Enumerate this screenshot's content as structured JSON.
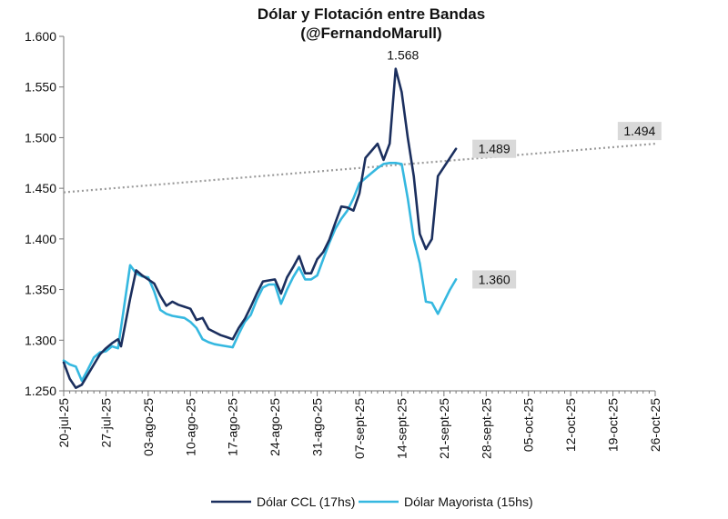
{
  "chart_data": {
    "type": "line",
    "title": "Dólar y Flotación entre Bandas",
    "subtitle": "(@FernandoMarull)",
    "xlabel": "",
    "ylabel": "",
    "ylim": [
      1250,
      1600
    ],
    "yticks": [
      "1.250",
      "1.300",
      "1.350",
      "1.400",
      "1.450",
      "1.500",
      "1.550",
      "1.600"
    ],
    "x_start": "20-jul-25",
    "x_end_day": 98,
    "xticks": [
      {
        "label": "20-jul-25",
        "day": 0
      },
      {
        "label": "27-jul-25",
        "day": 7
      },
      {
        "label": "03-ago-25",
        "day": 14
      },
      {
        "label": "10-ago-25",
        "day": 21
      },
      {
        "label": "17-ago-25",
        "day": 28
      },
      {
        "label": "24-ago-25",
        "day": 35
      },
      {
        "label": "31-ago-25",
        "day": 42
      },
      {
        "label": "07-sept-25",
        "day": 49
      },
      {
        "label": "14-sept-25",
        "day": 56
      },
      {
        "label": "21-sept-25",
        "day": 63
      },
      {
        "label": "28-sept-25",
        "day": 70
      },
      {
        "label": "05-oct-25",
        "day": 77
      },
      {
        "label": "12-oct-25",
        "day": 84
      },
      {
        "label": "19-oct-25",
        "day": 91
      },
      {
        "label": "26-oct-25",
        "day": 98
      }
    ],
    "series": [
      {
        "name": "Dólar CCL (17hs)",
        "color": "#1b2f5e",
        "points": [
          [
            0,
            1278
          ],
          [
            1,
            1262
          ],
          [
            2,
            1253
          ],
          [
            3,
            1256
          ],
          [
            4,
            1266
          ],
          [
            5,
            1276
          ],
          [
            6,
            1286
          ],
          [
            7,
            1292
          ],
          [
            8,
            1297
          ],
          [
            9,
            1301
          ],
          [
            9.5,
            1294
          ],
          [
            11,
            1341
          ],
          [
            12,
            1369
          ],
          [
            13,
            1364
          ],
          [
            14,
            1360
          ],
          [
            15,
            1356
          ],
          [
            16,
            1344
          ],
          [
            17,
            1334
          ],
          [
            18,
            1338
          ],
          [
            19,
            1335
          ],
          [
            20,
            1333
          ],
          [
            21,
            1331
          ],
          [
            22,
            1320
          ],
          [
            23,
            1322
          ],
          [
            24,
            1311
          ],
          [
            25,
            1308
          ],
          [
            26,
            1305
          ],
          [
            27,
            1303
          ],
          [
            28,
            1301
          ],
          [
            29,
            1312
          ],
          [
            30,
            1321
          ],
          [
            31,
            1333
          ],
          [
            32,
            1346
          ],
          [
            33,
            1358
          ],
          [
            34,
            1359
          ],
          [
            35,
            1360
          ],
          [
            36,
            1346
          ],
          [
            37,
            1362
          ],
          [
            38,
            1372
          ],
          [
            39,
            1383
          ],
          [
            40,
            1366
          ],
          [
            41,
            1366
          ],
          [
            42,
            1380
          ],
          [
            43,
            1387
          ],
          [
            44,
            1399
          ],
          [
            45,
            1416
          ],
          [
            46,
            1432
          ],
          [
            47,
            1431
          ],
          [
            48,
            1428
          ],
          [
            49,
            1445
          ],
          [
            50,
            1480
          ],
          [
            51,
            1487
          ],
          [
            52,
            1494
          ],
          [
            53,
            1478
          ],
          [
            54,
            1494
          ],
          [
            55,
            1568
          ],
          [
            56,
            1545
          ],
          [
            57,
            1500
          ],
          [
            58,
            1462
          ],
          [
            59,
            1405
          ],
          [
            60,
            1390
          ],
          [
            61,
            1400
          ],
          [
            62,
            1462
          ],
          [
            63,
            1471
          ],
          [
            64,
            1480
          ],
          [
            65,
            1489
          ]
        ],
        "end_label": "1.489"
      },
      {
        "name": "Dólar Mayorista (15hs)",
        "color": "#35b8e0",
        "points": [
          [
            0,
            1280
          ],
          [
            1,
            1276
          ],
          [
            2,
            1274
          ],
          [
            3,
            1260
          ],
          [
            4,
            1271
          ],
          [
            5,
            1283
          ],
          [
            6,
            1288
          ],
          [
            7,
            1289
          ],
          [
            8,
            1294
          ],
          [
            9,
            1292
          ],
          [
            11,
            1374
          ],
          [
            12,
            1366
          ],
          [
            13,
            1363
          ],
          [
            14,
            1362
          ],
          [
            15,
            1348
          ],
          [
            16,
            1330
          ],
          [
            17,
            1326
          ],
          [
            18,
            1324
          ],
          [
            19,
            1323
          ],
          [
            20,
            1322
          ],
          [
            21,
            1318
          ],
          [
            22,
            1312
          ],
          [
            23,
            1301
          ],
          [
            24,
            1298
          ],
          [
            25,
            1296
          ],
          [
            26,
            1295
          ],
          [
            27,
            1294
          ],
          [
            28,
            1293
          ],
          [
            29,
            1306
          ],
          [
            30,
            1318
          ],
          [
            31,
            1325
          ],
          [
            32,
            1340
          ],
          [
            33,
            1352
          ],
          [
            34,
            1355
          ],
          [
            35,
            1355
          ],
          [
            36,
            1336
          ],
          [
            37,
            1350
          ],
          [
            38,
            1362
          ],
          [
            39,
            1372
          ],
          [
            40,
            1360
          ],
          [
            41,
            1360
          ],
          [
            42,
            1364
          ],
          [
            43,
            1380
          ],
          [
            44,
            1396
          ],
          [
            45,
            1410
          ],
          [
            46,
            1420
          ],
          [
            47,
            1428
          ],
          [
            48,
            1440
          ],
          [
            49,
            1455
          ],
          [
            50,
            1460
          ],
          [
            51,
            1465
          ],
          [
            52,
            1470
          ],
          [
            53,
            1474
          ],
          [
            54,
            1475
          ],
          [
            55,
            1475
          ],
          [
            56,
            1474
          ],
          [
            57,
            1440
          ],
          [
            58,
            1400
          ],
          [
            59,
            1376
          ],
          [
            60,
            1338
          ],
          [
            61,
            1337
          ],
          [
            62,
            1326
          ],
          [
            63,
            1338
          ],
          [
            64,
            1350
          ],
          [
            65,
            1360
          ]
        ],
        "end_label": "1.360"
      }
    ],
    "band": {
      "name": "Banda superior",
      "color": "#9a9a9a",
      "style": "dotted",
      "points": [
        [
          0,
          1446
        ],
        [
          98,
          1494
        ]
      ],
      "end_label": "1.494"
    },
    "annotations": [
      {
        "text": "1.568",
        "day": 55,
        "value": 1568
      }
    ],
    "legend": {
      "position": "bottom",
      "items": [
        "Dólar CCL (17hs)",
        "Dólar Mayorista (15hs)"
      ]
    }
  }
}
